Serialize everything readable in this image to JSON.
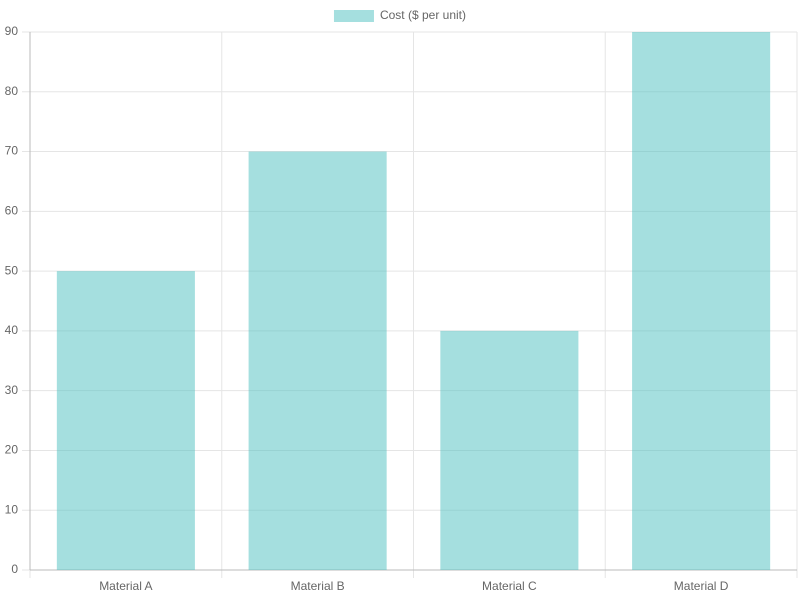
{
  "chart_data": {
    "type": "bar",
    "categories": [
      "Material A",
      "Material B",
      "Material C",
      "Material D"
    ],
    "series": [
      {
        "name": "Cost ($ per unit)",
        "color": "rgba(75,192,192,0.5)",
        "values": [
          50,
          70,
          40,
          90
        ]
      }
    ],
    "ylim": [
      0,
      90
    ],
    "yticks": [
      0,
      10,
      20,
      30,
      40,
      50,
      60,
      70,
      80,
      90
    ],
    "grid": true,
    "legend": "top"
  }
}
